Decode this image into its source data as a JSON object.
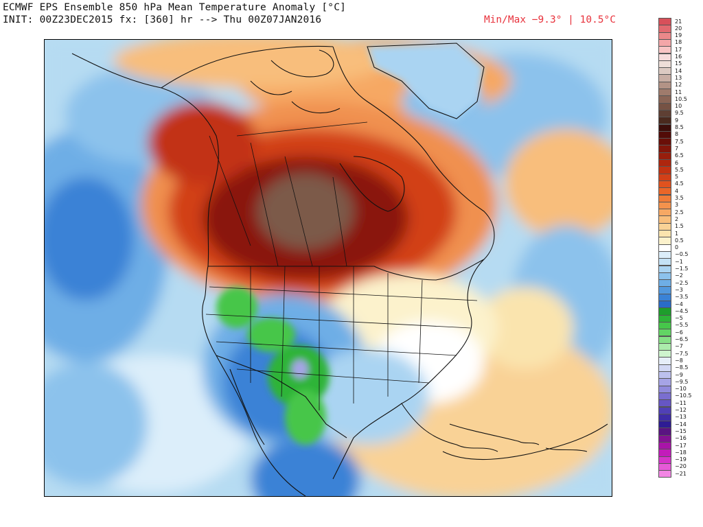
{
  "header": {
    "title": "ECMWF EPS Ensemble 850 hPa Mean Temperature Anomaly [°C]",
    "init_line": "INIT: 00Z23DEC2015 fx: [360] hr --> Thu 00Z07JAN2016",
    "minmax": "Min/Max −9.3° | 10.5°C",
    "minmax_color": "#e8323c"
  },
  "map": {
    "projection": "polar stereographic",
    "region": "North America",
    "outlines": "coastlines, country and state/province borders"
  },
  "colorbar": {
    "orientation": "vertical",
    "placement": "right",
    "labels": [
      "21",
      "20",
      "19",
      "18",
      "17",
      "16",
      "15",
      "14",
      "13",
      "12",
      "11",
      "10.5",
      "10",
      "9.5",
      "9",
      "8.5",
      "8",
      "7.5",
      "7",
      "6.5",
      "6",
      "5.5",
      "5",
      "4.5",
      "4",
      "3.5",
      "3",
      "2.5",
      "2",
      "1.5",
      "1",
      "0.5",
      "0",
      "−0.5",
      "−1",
      "−1.5",
      "−2",
      "−2.5",
      "−3",
      "−3.5",
      "−4",
      "−4.5",
      "−5",
      "−5.5",
      "−6",
      "−6.5",
      "−7",
      "−7.5",
      "−8",
      "−8.5",
      "−9",
      "−9.5",
      "−10",
      "−10.5",
      "−11",
      "−12",
      "−13",
      "−14",
      "−15",
      "−16",
      "−17",
      "−18",
      "−19",
      "−20",
      "−21"
    ],
    "colors": [
      "#d8505a",
      "#e26a70",
      "#ec888a",
      "#f4a6a8",
      "#f8c4c4",
      "#f6dcdc",
      "#eeded8",
      "#dccac2",
      "#c8aea4",
      "#b39386",
      "#9f7b6c",
      "#8a6556",
      "#765244",
      "#5e3f33",
      "#4a2a1e",
      "#3c0e0a",
      "#520c08",
      "#6a0f08",
      "#82160a",
      "#981e0c",
      "#ae260e",
      "#c23212",
      "#d24018",
      "#e0521e",
      "#ea6628",
      "#f07c38",
      "#f4924c",
      "#f6a864",
      "#f8be7c",
      "#f9d296",
      "#fae4ae",
      "#fcf2cc",
      "#ffffff",
      "#dceefa",
      "#c4e2f6",
      "#aad4f2",
      "#8cc2ec",
      "#6eaee6",
      "#5298de",
      "#3a82d6",
      "#2a6cc8",
      "#1e9e2c",
      "#2eb438",
      "#46c64a",
      "#62d464",
      "#86e086",
      "#acecac",
      "#cef4ce",
      "#e6eef8",
      "#d2d8f4",
      "#bcc0ee",
      "#a6a4e6",
      "#908adc",
      "#7a6ed0",
      "#6656c4",
      "#5040b6",
      "#3e2ca6",
      "#2e1c94",
      "#5a1482",
      "#841294",
      "#a814a8",
      "#c21cba",
      "#d634ca",
      "#e65ad8",
      "#f286e4"
    ]
  }
}
